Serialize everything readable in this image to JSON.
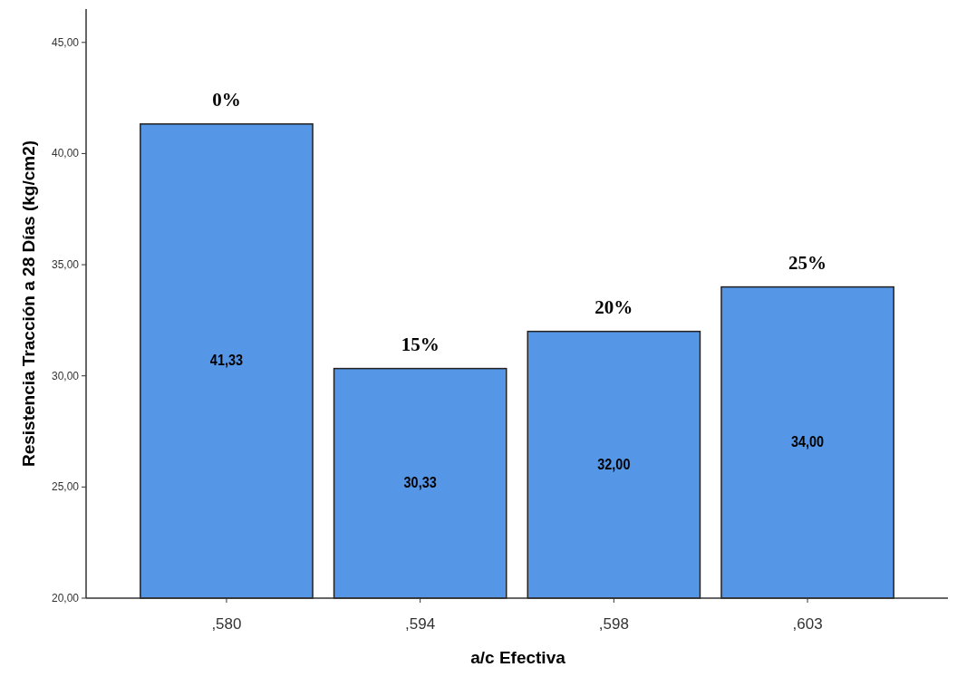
{
  "chart_data": {
    "type": "bar",
    "xlabel": "a/c Efectiva",
    "ylabel": "Resistencia Tracción a 28 Días (kg/cm2)",
    "categories": [
      ",580",
      ",594",
      ",598",
      ",603"
    ],
    "values": [
      41.33,
      30.33,
      32.0,
      34.0
    ],
    "value_labels": [
      "41,33",
      "30,33",
      "32,00",
      "34,00"
    ],
    "color": "#5596e6",
    "ylim": [
      20,
      46.5
    ],
    "yticks": [
      {
        "value": 20,
        "label": "20,00"
      },
      {
        "value": 25,
        "label": "25,00"
      },
      {
        "value": 30,
        "label": "30,00"
      },
      {
        "value": 35,
        "label": "35,00"
      },
      {
        "value": 40,
        "label": "40,00"
      },
      {
        "value": 45,
        "label": "45,00"
      }
    ],
    "annotations": [
      {
        "text": "0%",
        "x": ",580",
        "y": 41.33
      },
      {
        "text": "15%",
        "x": ",594",
        "y": 30.33
      },
      {
        "text": "20%",
        "x": ",598",
        "y": 32.0
      },
      {
        "text": "25%",
        "x": ",603",
        "y": 34.0
      }
    ],
    "grid": false
  }
}
